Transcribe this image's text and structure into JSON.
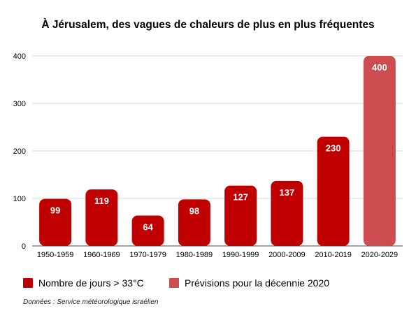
{
  "title": "À Jérusalem, des vagues de chaleurs de plus en plus fréquentes",
  "legend": {
    "observed": {
      "label": "Nombre de jours > 33°C",
      "color": "#c00000"
    },
    "forecast": {
      "label": "Prévisions pour la décennie 2020",
      "color": "#cc4c4f"
    }
  },
  "source": "Données : Service météorologique israélien",
  "chart_data": {
    "type": "bar",
    "title": "À Jérusalem, des vagues de chaleurs de plus en plus fréquentes",
    "xlabel": "",
    "ylabel": "",
    "categories": [
      "1950-1959",
      "1960-1969",
      "1970-1979",
      "1980-1989",
      "1990-1999",
      "2000-2009",
      "2010-2019",
      "2020-2029"
    ],
    "series": [
      {
        "name": "Nombre de jours > 33°C",
        "values": [
          99,
          119,
          64,
          98,
          127,
          137,
          230,
          null
        ],
        "color": "#c00000"
      },
      {
        "name": "Prévisions pour la décennie 2020",
        "values": [
          null,
          null,
          null,
          null,
          null,
          null,
          null,
          400
        ],
        "color": "#cc4c4f"
      }
    ],
    "ylim": [
      0,
      400
    ],
    "yticks": [
      0,
      100,
      200,
      300,
      400
    ],
    "grid": true,
    "data_labels": true,
    "legend_position": "bottom"
  }
}
